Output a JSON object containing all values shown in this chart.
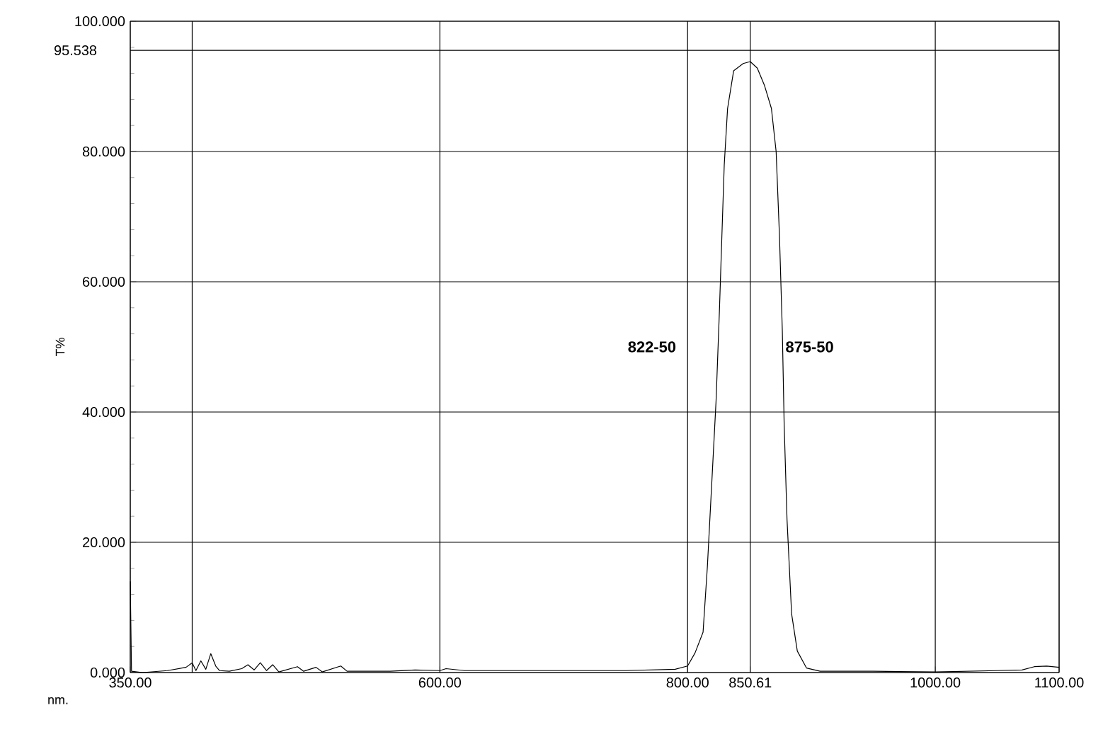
{
  "chart_data": {
    "type": "line",
    "xlabel": "nm.",
    "ylabel": "T%",
    "xlim": [
      350,
      1100
    ],
    "ylim": [
      0,
      100
    ],
    "xticks": [
      {
        "value": 350,
        "label": "350.00"
      },
      {
        "value": 400,
        "label": null
      },
      {
        "value": 600,
        "label": "600.00"
      },
      {
        "value": 800,
        "label": "800.00"
      },
      850.61,
      {
        "value": 1000,
        "label": "1000.00"
      },
      {
        "value": 1100,
        "label": "1100.00"
      }
    ],
    "yticks": [
      {
        "value": 0,
        "label": "0.000"
      },
      {
        "value": 20,
        "label": "20.000"
      },
      {
        "value": 40,
        "label": "40.000"
      },
      {
        "value": 60,
        "label": "60.000"
      },
      {
        "value": 80,
        "label": "80.000"
      },
      {
        "value": 100,
        "label": "100.000"
      }
    ],
    "grid": true,
    "marker": "none",
    "line_style": "solid",
    "ref_lines": [
      {
        "axis": "y",
        "value": 95.538,
        "label": "95.538",
        "color": "#000000"
      }
    ],
    "annotations": [
      "822-50",
      "875-50"
    ],
    "series": [
      {
        "color": "#000000",
        "x": [
          350,
          351,
          360,
          380,
          395,
          400,
          403,
          407,
          411,
          415,
          419,
          422,
          430,
          440,
          445,
          450,
          455,
          460,
          465,
          470,
          485,
          490,
          500,
          505,
          520,
          525,
          540,
          560,
          580,
          600,
          605,
          620,
          650,
          700,
          750,
          790,
          800,
          806,
          812.5,
          816,
          820,
          823,
          825.8,
          827.7,
          829.6,
          832.3,
          837.2,
          844.9,
          850.6,
          856.3,
          862,
          867.7,
          871.5,
          874.2,
          876.5,
          878,
          880.3,
          884,
          888.6,
          896,
          907,
          950,
          1000,
          1050,
          1070,
          1080,
          1090,
          1100
        ],
        "values": [
          14,
          0.2,
          0,
          0.3,
          0.8,
          1.5,
          0.3,
          1.8,
          0.5,
          2.9,
          1,
          0.3,
          0.2,
          0.6,
          1.2,
          0.4,
          1.5,
          0.3,
          1.2,
          0.1,
          0.9,
          0.2,
          0.8,
          0.1,
          1,
          0.2,
          0.2,
          0.2,
          0.4,
          0.3,
          0.6,
          0.3,
          0.3,
          0.3,
          0.3,
          0.5,
          1,
          3,
          6.2,
          16.3,
          30.8,
          41.7,
          56,
          67,
          77.9,
          86.6,
          92.4,
          93.5,
          93.8,
          92.8,
          90.2,
          86.6,
          80,
          67,
          52.5,
          38,
          23.5,
          9,
          3.3,
          0.7,
          0.2,
          0.2,
          0.1,
          0.3,
          0.4,
          0.9,
          1,
          0.8
        ]
      }
    ]
  }
}
